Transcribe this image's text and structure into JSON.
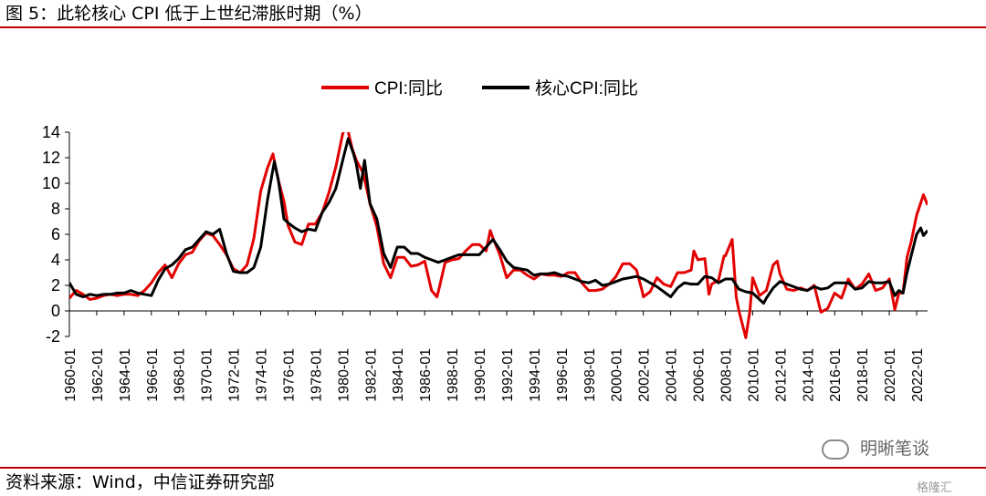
{
  "header": {
    "title": "图 5：此轮核心 CPI 低于上世纪滞胀时期（%）"
  },
  "footer": {
    "source": "资料来源：Wind，中信证券研究部"
  },
  "watermark": {
    "text": "明晰笔谈",
    "corner": "格隆汇"
  },
  "chart_data": {
    "type": "line",
    "title": "",
    "xlabel": "",
    "ylabel": "",
    "ylim": [
      -2,
      14
    ],
    "y_ticks": [
      -2,
      0,
      2,
      4,
      6,
      8,
      10,
      12,
      14
    ],
    "x_tick_labels": [
      "1960-01",
      "1962-01",
      "1964-01",
      "1966-01",
      "1968-01",
      "1970-01",
      "1972-01",
      "1974-01",
      "1976-01",
      "1978-01",
      "1980-01",
      "1982-01",
      "1984-01",
      "1986-01",
      "1988-01",
      "1990-01",
      "1992-01",
      "1994-01",
      "1996-01",
      "1998-01",
      "2000-01",
      "2002-01",
      "2004-01",
      "2006-01",
      "2008-01",
      "2010-01",
      "2012-01",
      "2014-01",
      "2016-01",
      "2018-01",
      "2020-01",
      "2022-01"
    ],
    "x_range": [
      1960.0,
      2022.8
    ],
    "legend_position": "top-center",
    "grid": false,
    "series": [
      {
        "name": "CPI:同比",
        "color": "#e30000",
        "points": [
          [
            1960.0,
            1.0
          ],
          [
            1960.5,
            1.6
          ],
          [
            1961.0,
            1.3
          ],
          [
            1961.5,
            0.9
          ],
          [
            1962.0,
            1.0
          ],
          [
            1962.5,
            1.2
          ],
          [
            1963.0,
            1.3
          ],
          [
            1963.5,
            1.2
          ],
          [
            1964.0,
            1.3
          ],
          [
            1964.5,
            1.3
          ],
          [
            1965.0,
            1.2
          ],
          [
            1965.5,
            1.6
          ],
          [
            1966.0,
            2.2
          ],
          [
            1966.5,
            3.0
          ],
          [
            1967.0,
            3.6
          ],
          [
            1967.5,
            2.6
          ],
          [
            1968.0,
            3.7
          ],
          [
            1968.5,
            4.4
          ],
          [
            1969.0,
            4.6
          ],
          [
            1969.5,
            5.5
          ],
          [
            1970.0,
            6.1
          ],
          [
            1970.5,
            5.9
          ],
          [
            1971.0,
            5.2
          ],
          [
            1971.5,
            4.4
          ],
          [
            1972.0,
            3.3
          ],
          [
            1972.5,
            3.0
          ],
          [
            1973.0,
            3.6
          ],
          [
            1973.5,
            5.7
          ],
          [
            1974.0,
            9.4
          ],
          [
            1974.5,
            11.2
          ],
          [
            1974.9,
            12.3
          ],
          [
            1975.3,
            10.2
          ],
          [
            1975.7,
            8.6
          ],
          [
            1976.0,
            6.7
          ],
          [
            1976.5,
            5.4
          ],
          [
            1977.0,
            5.2
          ],
          [
            1977.5,
            6.8
          ],
          [
            1978.0,
            6.8
          ],
          [
            1978.5,
            7.7
          ],
          [
            1979.0,
            9.3
          ],
          [
            1979.5,
            11.3
          ],
          [
            1980.0,
            13.9
          ],
          [
            1980.3,
            14.5
          ],
          [
            1980.7,
            12.7
          ],
          [
            1981.0,
            11.8
          ],
          [
            1981.5,
            10.8
          ],
          [
            1982.0,
            8.4
          ],
          [
            1982.5,
            6.6
          ],
          [
            1983.0,
            3.7
          ],
          [
            1983.5,
            2.6
          ],
          [
            1984.0,
            4.2
          ],
          [
            1984.5,
            4.2
          ],
          [
            1985.0,
            3.5
          ],
          [
            1985.5,
            3.6
          ],
          [
            1986.0,
            3.9
          ],
          [
            1986.5,
            1.6
          ],
          [
            1986.9,
            1.1
          ],
          [
            1987.0,
            1.5
          ],
          [
            1987.5,
            3.8
          ],
          [
            1988.0,
            4.0
          ],
          [
            1988.5,
            4.1
          ],
          [
            1989.0,
            4.7
          ],
          [
            1989.5,
            5.2
          ],
          [
            1990.0,
            5.2
          ],
          [
            1990.5,
            4.7
          ],
          [
            1990.8,
            6.3
          ],
          [
            1991.0,
            5.7
          ],
          [
            1991.5,
            4.4
          ],
          [
            1992.0,
            2.6
          ],
          [
            1992.5,
            3.2
          ],
          [
            1993.0,
            3.2
          ],
          [
            1993.5,
            2.8
          ],
          [
            1994.0,
            2.5
          ],
          [
            1994.5,
            2.9
          ],
          [
            1995.0,
            2.8
          ],
          [
            1995.5,
            2.8
          ],
          [
            1996.0,
            2.7
          ],
          [
            1996.5,
            3.0
          ],
          [
            1997.0,
            3.0
          ],
          [
            1997.5,
            2.2
          ],
          [
            1998.0,
            1.6
          ],
          [
            1998.5,
            1.6
          ],
          [
            1999.0,
            1.7
          ],
          [
            1999.5,
            2.1
          ],
          [
            2000.0,
            2.7
          ],
          [
            2000.5,
            3.7
          ],
          [
            2001.0,
            3.7
          ],
          [
            2001.5,
            3.2
          ],
          [
            2001.9,
            1.6
          ],
          [
            2002.0,
            1.1
          ],
          [
            2002.5,
            1.5
          ],
          [
            2003.0,
            2.6
          ],
          [
            2003.5,
            2.1
          ],
          [
            2004.0,
            1.9
          ],
          [
            2004.5,
            3.0
          ],
          [
            2005.0,
            3.0
          ],
          [
            2005.5,
            3.2
          ],
          [
            2005.7,
            4.7
          ],
          [
            2006.0,
            4.0
          ],
          [
            2006.5,
            4.1
          ],
          [
            2006.8,
            1.3
          ],
          [
            2007.0,
            2.1
          ],
          [
            2007.5,
            2.4
          ],
          [
            2007.9,
            4.3
          ],
          [
            2008.0,
            4.3
          ],
          [
            2008.5,
            5.6
          ],
          [
            2008.8,
            1.1
          ],
          [
            2009.0,
            0.0
          ],
          [
            2009.5,
            -2.1
          ],
          [
            2009.8,
            0.0
          ],
          [
            2010.0,
            2.6
          ],
          [
            2010.5,
            1.2
          ],
          [
            2011.0,
            1.6
          ],
          [
            2011.5,
            3.6
          ],
          [
            2011.8,
            3.9
          ],
          [
            2012.0,
            2.9
          ],
          [
            2012.5,
            1.7
          ],
          [
            2013.0,
            1.6
          ],
          [
            2013.5,
            1.8
          ],
          [
            2014.0,
            1.6
          ],
          [
            2014.5,
            2.0
          ],
          [
            2015.0,
            -0.1
          ],
          [
            2015.5,
            0.2
          ],
          [
            2016.0,
            1.4
          ],
          [
            2016.5,
            1.0
          ],
          [
            2017.0,
            2.5
          ],
          [
            2017.5,
            1.7
          ],
          [
            2018.0,
            2.1
          ],
          [
            2018.5,
            2.9
          ],
          [
            2019.0,
            1.6
          ],
          [
            2019.5,
            1.8
          ],
          [
            2020.0,
            2.5
          ],
          [
            2020.4,
            0.1
          ],
          [
            2020.7,
            1.4
          ],
          [
            2021.0,
            1.4
          ],
          [
            2021.3,
            4.2
          ],
          [
            2021.6,
            5.4
          ],
          [
            2022.0,
            7.5
          ],
          [
            2022.5,
            9.1
          ],
          [
            2022.8,
            8.3
          ]
        ]
      },
      {
        "name": "核心CPI:同比",
        "color": "#000000",
        "points": [
          [
            1960.0,
            2.2
          ],
          [
            1960.5,
            1.3
          ],
          [
            1961.0,
            1.1
          ],
          [
            1961.5,
            1.3
          ],
          [
            1962.0,
            1.2
          ],
          [
            1962.5,
            1.3
          ],
          [
            1963.0,
            1.3
          ],
          [
            1963.5,
            1.4
          ],
          [
            1964.0,
            1.4
          ],
          [
            1964.5,
            1.6
          ],
          [
            1965.0,
            1.4
          ],
          [
            1965.5,
            1.3
          ],
          [
            1966.0,
            1.2
          ],
          [
            1966.5,
            2.4
          ],
          [
            1967.0,
            3.3
          ],
          [
            1967.5,
            3.6
          ],
          [
            1968.0,
            4.1
          ],
          [
            1968.5,
            4.8
          ],
          [
            1969.0,
            5.0
          ],
          [
            1969.5,
            5.6
          ],
          [
            1970.0,
            6.2
          ],
          [
            1970.5,
            6.0
          ],
          [
            1971.0,
            6.4
          ],
          [
            1971.5,
            4.5
          ],
          [
            1972.0,
            3.1
          ],
          [
            1972.5,
            3.0
          ],
          [
            1973.0,
            3.0
          ],
          [
            1973.5,
            3.4
          ],
          [
            1974.0,
            5.0
          ],
          [
            1974.5,
            8.7
          ],
          [
            1975.0,
            11.7
          ],
          [
            1975.3,
            10.2
          ],
          [
            1975.7,
            7.2
          ],
          [
            1976.0,
            6.9
          ],
          [
            1976.5,
            6.5
          ],
          [
            1977.0,
            6.2
          ],
          [
            1977.5,
            6.4
          ],
          [
            1978.0,
            6.3
          ],
          [
            1978.5,
            7.7
          ],
          [
            1979.0,
            8.5
          ],
          [
            1979.5,
            9.6
          ],
          [
            1980.0,
            11.8
          ],
          [
            1980.4,
            13.5
          ],
          [
            1980.8,
            12.3
          ],
          [
            1981.0,
            11.5
          ],
          [
            1981.3,
            9.6
          ],
          [
            1981.6,
            11.8
          ],
          [
            1982.0,
            8.4
          ],
          [
            1982.5,
            7.2
          ],
          [
            1983.0,
            4.5
          ],
          [
            1983.5,
            3.4
          ],
          [
            1984.0,
            5.0
          ],
          [
            1984.5,
            5.0
          ],
          [
            1985.0,
            4.5
          ],
          [
            1985.5,
            4.5
          ],
          [
            1986.0,
            4.2
          ],
          [
            1986.5,
            4.0
          ],
          [
            1987.0,
            3.8
          ],
          [
            1987.5,
            4.0
          ],
          [
            1988.0,
            4.2
          ],
          [
            1988.5,
            4.4
          ],
          [
            1989.0,
            4.4
          ],
          [
            1989.5,
            4.4
          ],
          [
            1990.0,
            4.4
          ],
          [
            1990.5,
            5.0
          ],
          [
            1991.0,
            5.6
          ],
          [
            1991.5,
            4.8
          ],
          [
            1992.0,
            3.9
          ],
          [
            1992.5,
            3.4
          ],
          [
            1993.0,
            3.3
          ],
          [
            1993.5,
            3.2
          ],
          [
            1994.0,
            2.8
          ],
          [
            1994.5,
            2.9
          ],
          [
            1995.0,
            2.9
          ],
          [
            1995.5,
            3.0
          ],
          [
            1996.0,
            2.8
          ],
          [
            1996.5,
            2.7
          ],
          [
            1997.0,
            2.5
          ],
          [
            1997.5,
            2.3
          ],
          [
            1998.0,
            2.2
          ],
          [
            1998.5,
            2.4
          ],
          [
            1999.0,
            2.0
          ],
          [
            1999.5,
            2.1
          ],
          [
            2000.0,
            2.3
          ],
          [
            2000.5,
            2.5
          ],
          [
            2001.0,
            2.6
          ],
          [
            2001.5,
            2.7
          ],
          [
            2002.0,
            2.5
          ],
          [
            2002.5,
            2.2
          ],
          [
            2003.0,
            1.9
          ],
          [
            2003.5,
            1.5
          ],
          [
            2004.0,
            1.1
          ],
          [
            2004.5,
            1.8
          ],
          [
            2005.0,
            2.2
          ],
          [
            2005.5,
            2.1
          ],
          [
            2006.0,
            2.1
          ],
          [
            2006.5,
            2.7
          ],
          [
            2007.0,
            2.6
          ],
          [
            2007.5,
            2.2
          ],
          [
            2008.0,
            2.5
          ],
          [
            2008.5,
            2.5
          ],
          [
            2009.0,
            1.7
          ],
          [
            2009.5,
            1.5
          ],
          [
            2010.0,
            1.4
          ],
          [
            2010.5,
            0.9
          ],
          [
            2010.8,
            0.6
          ],
          [
            2011.0,
            1.0
          ],
          [
            2011.5,
            1.8
          ],
          [
            2012.0,
            2.3
          ],
          [
            2012.5,
            2.1
          ],
          [
            2013.0,
            1.9
          ],
          [
            2013.5,
            1.7
          ],
          [
            2014.0,
            1.6
          ],
          [
            2014.5,
            1.9
          ],
          [
            2015.0,
            1.7
          ],
          [
            2015.5,
            1.8
          ],
          [
            2016.0,
            2.2
          ],
          [
            2016.5,
            2.2
          ],
          [
            2017.0,
            2.2
          ],
          [
            2017.5,
            1.7
          ],
          [
            2018.0,
            1.8
          ],
          [
            2018.5,
            2.3
          ],
          [
            2019.0,
            2.2
          ],
          [
            2019.5,
            2.2
          ],
          [
            2020.0,
            2.3
          ],
          [
            2020.4,
            1.2
          ],
          [
            2020.7,
            1.6
          ],
          [
            2021.0,
            1.4
          ],
          [
            2021.3,
            3.0
          ],
          [
            2021.6,
            4.3
          ],
          [
            2022.0,
            6.0
          ],
          [
            2022.3,
            6.5
          ],
          [
            2022.5,
            5.9
          ],
          [
            2022.8,
            6.3
          ]
        ]
      }
    ]
  }
}
